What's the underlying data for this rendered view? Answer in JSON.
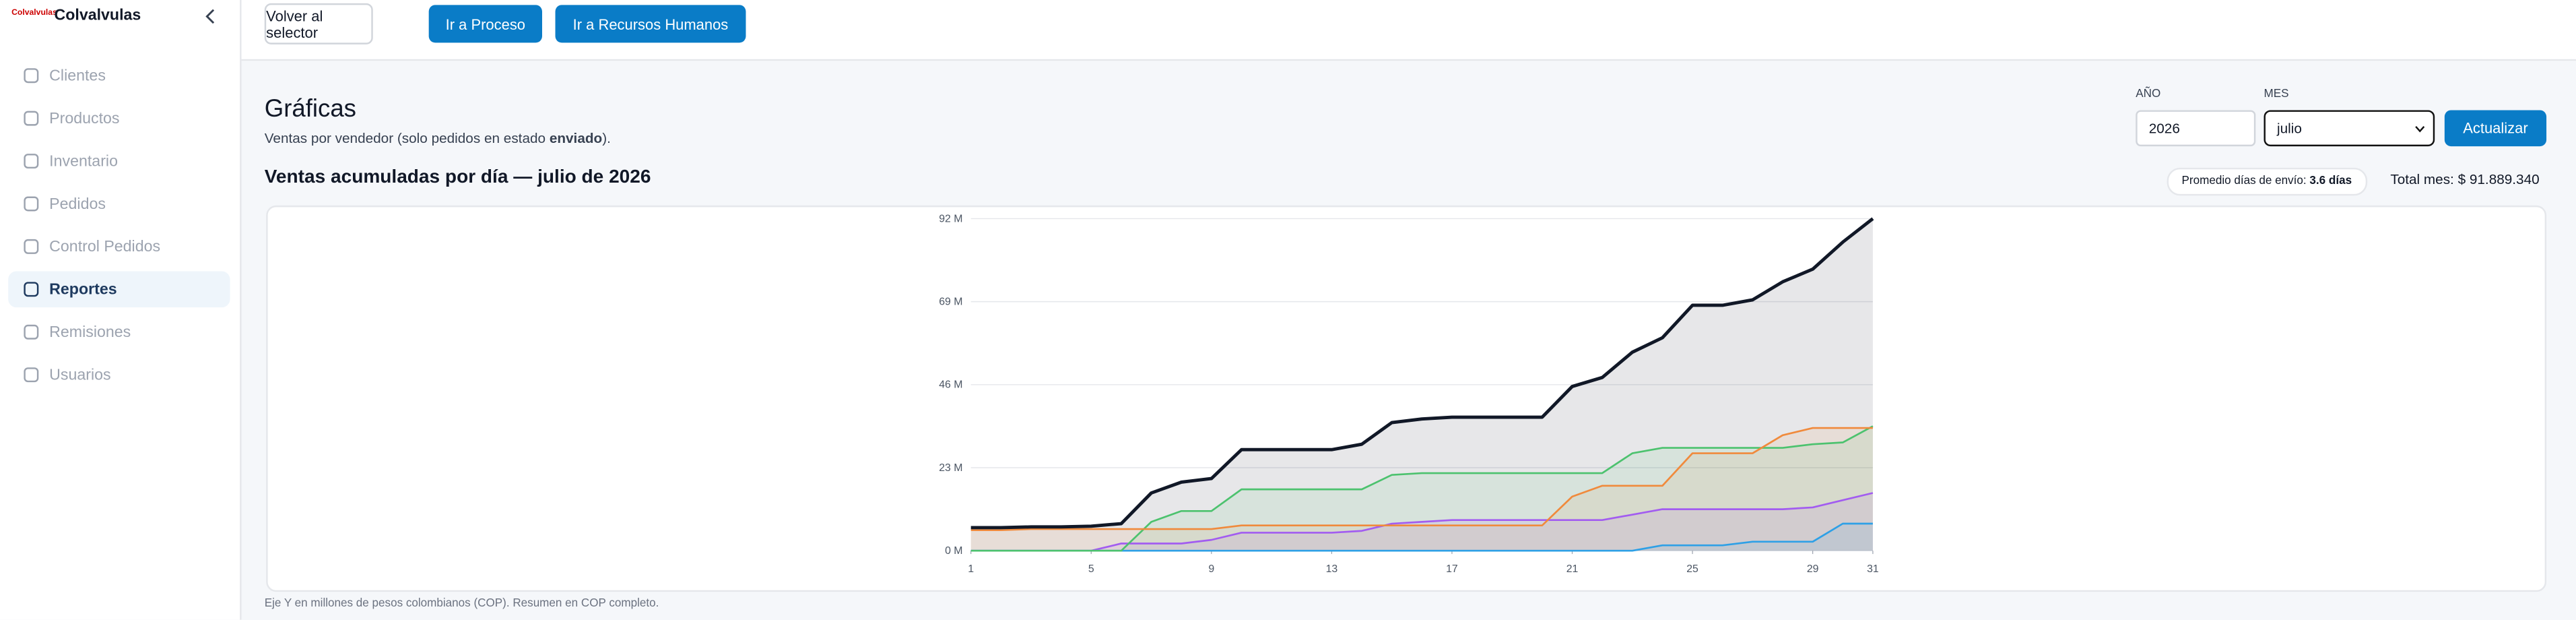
{
  "sidebar": {
    "brand": "Colvalvulas",
    "logo": "Colvalvulas",
    "nav": [
      "Clientes",
      "Productos",
      "Inventario",
      "Pedidos",
      "Control Pedidos",
      "Reportes",
      "Remisiones",
      "Usuarios"
    ]
  },
  "topbar": {
    "buttons": [
      "Volver al selector",
      "Ir a Proceso",
      "Ir a Recursos Humanos"
    ]
  },
  "header": {
    "title": "Gráficas",
    "subtitle": "Ventas por vendedor (solo pedidos en estado ",
    "subtitle_bold": "enviado",
    "subtitle_end": ")."
  },
  "form": {
    "year_label": "AÑO",
    "year": "2026",
    "month_label": "MES",
    "month": "julio",
    "submit": "Actualizar"
  },
  "summary": {
    "avg_label": "Promedio días de envío:",
    "avg_value": "3.6 días",
    "total": "Total mes: $ 91.889.340"
  },
  "footnote": "Eje Y en millones de pesos colombianos (COP). Resumen en COP completo.",
  "chart_data": {
    "type": "line",
    "title": "Ventas acumuladas por día — julio de 2026",
    "x": [
      1,
      2,
      3,
      4,
      5,
      6,
      7,
      8,
      9,
      10,
      11,
      12,
      13,
      14,
      15,
      16,
      17,
      18,
      19,
      20,
      21,
      22,
      23,
      24,
      25,
      26,
      27,
      28,
      29,
      30,
      31
    ],
    "xlim": [
      1,
      31
    ],
    "xticks": [
      1,
      5,
      9,
      13,
      17,
      21,
      25,
      29,
      31
    ],
    "ylim": [
      0,
      92
    ],
    "yticks": [
      {
        "value": 0,
        "label": "0 M"
      },
      {
        "value": 23,
        "label": "23 M"
      },
      {
        "value": 46,
        "label": "46 M"
      },
      {
        "value": 69,
        "label": "69 M"
      },
      {
        "value": 92,
        "label": "92 M"
      }
    ],
    "grid": true,
    "series": [
      {
        "color": "#111827",
        "values": [
          6.4,
          6.4,
          6.6,
          6.6,
          6.8,
          7.5,
          16,
          19,
          20,
          28,
          28,
          28,
          28,
          29.5,
          35.5,
          36.5,
          37,
          37,
          37,
          37,
          45.5,
          48,
          55,
          59,
          68,
          68,
          69.5,
          74.5,
          78,
          85.5,
          92
        ]
      },
      {
        "color": "#f08a3c",
        "values": [
          5.7,
          5.7,
          6,
          6,
          6,
          6,
          6,
          6,
          6,
          7,
          7,
          7,
          7,
          7,
          7,
          7,
          7,
          7,
          7,
          7,
          15,
          18,
          18,
          18,
          27,
          27,
          27,
          32,
          34,
          34,
          34
        ]
      },
      {
        "color": "#4cc26e",
        "values": [
          0,
          0,
          0,
          0,
          0,
          0,
          8,
          11,
          11,
          17,
          17,
          17,
          17,
          17,
          21,
          21.5,
          21.5,
          21.5,
          21.5,
          21.5,
          21.5,
          21.5,
          27,
          28.5,
          28.5,
          28.5,
          28.5,
          28.5,
          29.5,
          30,
          34.5
        ]
      },
      {
        "color": "#a25cf0",
        "values": [
          0,
          0,
          0,
          0,
          0,
          2,
          2,
          2,
          3,
          5,
          5,
          5,
          5,
          5.5,
          7.5,
          8,
          8.5,
          8.5,
          8.5,
          8.5,
          8.5,
          8.5,
          10,
          11.5,
          11.5,
          11.5,
          11.5,
          11.5,
          12,
          14,
          16
        ]
      },
      {
        "color": "#2ea0e6",
        "values": [
          0,
          0,
          0,
          0,
          0,
          0,
          0,
          0,
          0,
          0,
          0,
          0,
          0,
          0,
          0,
          0,
          0,
          0,
          0,
          0,
          0,
          0,
          0,
          1.5,
          1.5,
          1.5,
          2.5,
          2.5,
          2.5,
          7.5,
          7.5
        ]
      }
    ]
  }
}
